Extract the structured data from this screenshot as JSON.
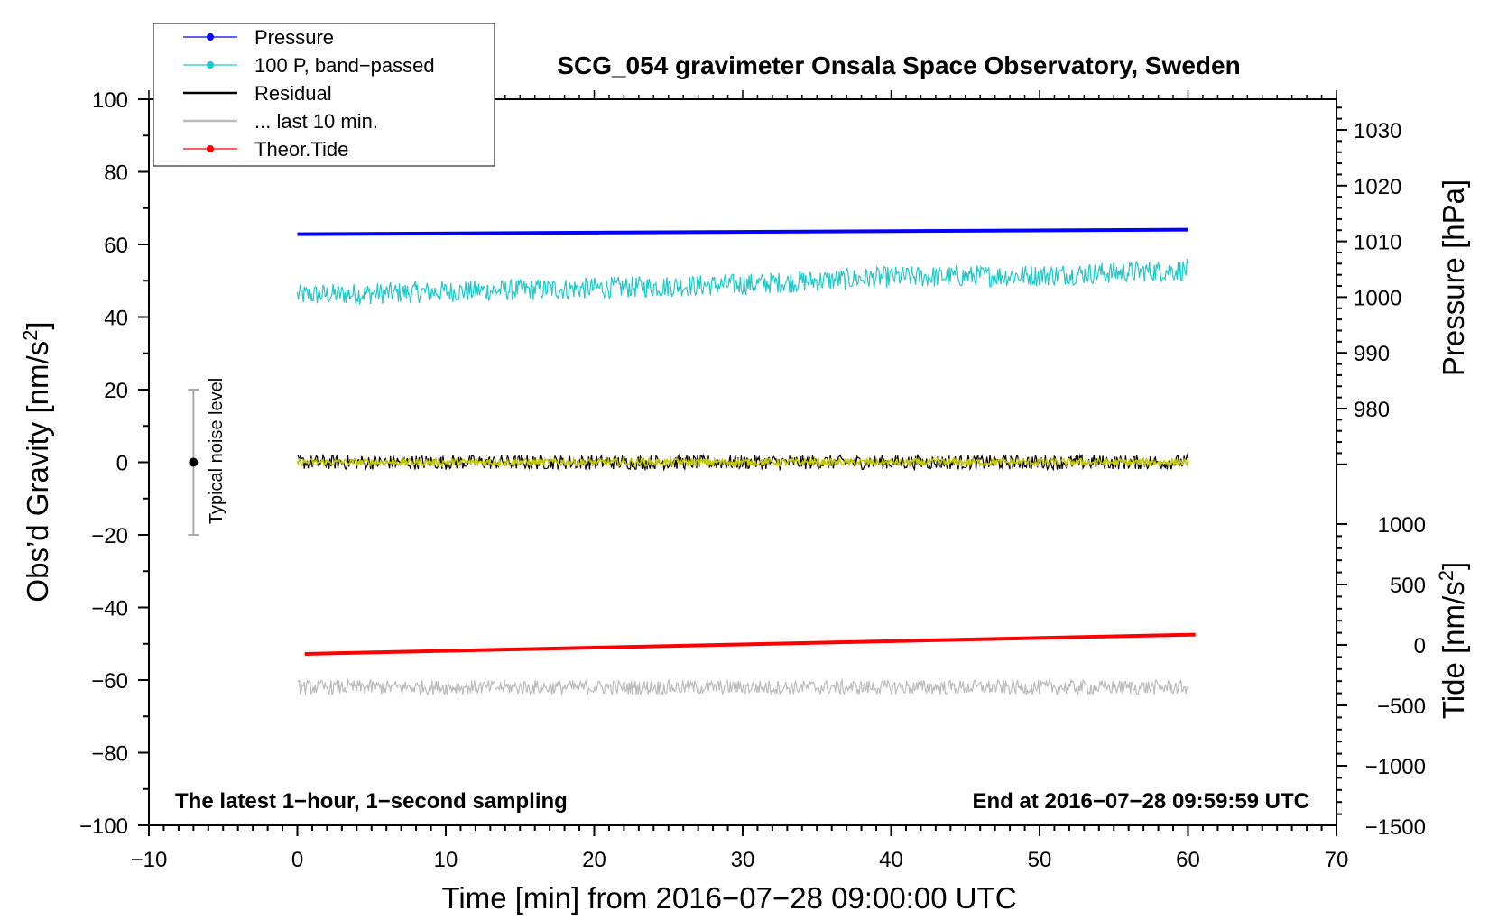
{
  "chart_data": {
    "type": "line",
    "title": "SCG_054 gravimeter Onsala Space Observatory, Sweden",
    "xlabel": "Time [min] from 2016−07−28 09:00:00 UTC",
    "ylabel": "Obs’d Gravity [nm/s²]",
    "ylabel_right_top": "Pressure [hPa]",
    "ylabel_right_bottom": "Tide [nm/s²]",
    "xlim": [
      -10,
      70
    ],
    "ylim": [
      -100,
      100
    ],
    "x_ticks": [
      "−10",
      "0",
      "10",
      "20",
      "30",
      "40",
      "50",
      "60",
      "70"
    ],
    "y_ticks": [
      "−100",
      "−80",
      "−60",
      "−40",
      "−20",
      "0",
      "20",
      "40",
      "60",
      "80",
      "100"
    ],
    "pressure_axis": {
      "range": [
        970,
        1034
      ],
      "ticks": [
        "980",
        "990",
        "1000",
        "1010",
        "1020",
        "1030"
      ]
    },
    "tide_axis": {
      "range": [
        -1500,
        1000
      ],
      "ticks": [
        "−1500",
        "−1000",
        "−500",
        "0",
        "500",
        "1000"
      ]
    },
    "left_note": "The latest 1−hour, 1−second sampling",
    "right_note": "End at 2016−07−28 09:59:59 UTC",
    "noise_indicator": {
      "label": "Typical noise level",
      "x": -7,
      "center": 0,
      "half_range": 20
    },
    "legend": [
      {
        "label": "Pressure",
        "color": "#0000ff",
        "marker": true
      },
      {
        "label": "100 P, band−passed",
        "color": "#20c8c8",
        "marker": true
      },
      {
        "label": "Residual",
        "color": "#000000",
        "marker": false
      },
      {
        "label": "... last 10 min.",
        "color": "#bbbbbb",
        "marker": false
      },
      {
        "label": "Theor.Tide",
        "color": "#ff0000",
        "marker": true
      }
    ],
    "series": [
      {
        "name": "Pressure",
        "axis": "pressure_hPa",
        "color": "#0000ff",
        "x": [
          0,
          60
        ],
        "y": [
          1011.3,
          1012.1
        ]
      },
      {
        "name": "100 P, band−passed",
        "axis": "gravity_nms2",
        "color": "#20c8c8",
        "x": [
          0,
          10,
          20,
          30,
          40,
          50,
          60
        ],
        "y": [
          46,
          47,
          48,
          49,
          51,
          51.5,
          53
        ],
        "noise_amplitude": 3
      },
      {
        "name": "Residual",
        "axis": "gravity_nms2",
        "color": "#000000",
        "x": [
          0,
          60
        ],
        "y": [
          0,
          0
        ],
        "noise_amplitude": 2
      },
      {
        "name": "Residual (smoothed)",
        "axis": "gravity_nms2",
        "color": "#c8c800",
        "x": [
          0,
          60
        ],
        "y": [
          0,
          0
        ],
        "noise_amplitude": 1
      },
      {
        "name": "... last 10 min.",
        "axis": "gravity_nms2",
        "color": "#bbbbbb",
        "x": [
          0,
          60
        ],
        "y": [
          -62,
          -62
        ],
        "noise_amplitude": 2
      },
      {
        "name": "Theor.Tide",
        "axis": "tide_nms2",
        "color": "#ff0000",
        "x": [
          0.5,
          60.5
        ],
        "y": [
          -75,
          85
        ]
      }
    ]
  }
}
